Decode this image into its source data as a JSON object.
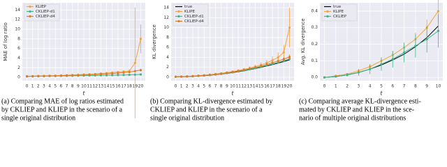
{
  "chart_data": [
    {
      "type": "line",
      "ylabel": "MAE of log ratio",
      "xlabel": "t",
      "x": [
        0,
        1,
        2,
        3,
        4,
        5,
        6,
        7,
        8,
        9,
        10,
        11,
        12,
        13,
        14,
        15,
        16,
        17,
        18,
        19,
        20
      ],
      "xlim": [
        -0.8,
        20.8
      ],
      "xticks": [
        0,
        1,
        2,
        3,
        4,
        5,
        6,
        7,
        8,
        9,
        10,
        11,
        12,
        13,
        14,
        15,
        16,
        17,
        18,
        19,
        20
      ],
      "ylim": [
        -0.7,
        15.5
      ],
      "yticks": [
        0,
        2,
        4,
        6,
        8,
        10,
        12,
        14
      ],
      "grid": true,
      "series": [
        {
          "name": "KLIEP",
          "color": "#f2a541",
          "values": [
            0.2,
            0.25,
            0.3,
            0.3,
            0.35,
            0.35,
            0.4,
            0.45,
            0.5,
            0.55,
            0.6,
            0.65,
            0.7,
            0.8,
            0.9,
            1.0,
            1.1,
            1.2,
            1.3,
            3.0,
            8.0
          ],
          "errors": [
            0.05,
            0.05,
            0.05,
            0.05,
            0.05,
            0.05,
            0.05,
            0.1,
            0.1,
            0.1,
            0.1,
            0.1,
            0.15,
            0.15,
            0.2,
            0.2,
            0.25,
            0.3,
            0.4,
            11.5,
            3.0
          ]
        },
        {
          "name": "CKLIEP-d1",
          "color": "#3fb68a",
          "values": [
            0.2,
            0.22,
            0.24,
            0.25,
            0.27,
            0.28,
            0.3,
            0.31,
            0.33,
            0.35,
            0.36,
            0.38,
            0.4,
            0.42,
            0.44,
            0.46,
            0.48,
            0.5,
            0.53,
            0.56,
            0.6
          ],
          "errors": [
            0.03,
            0.03,
            0.03,
            0.03,
            0.03,
            0.03,
            0.03,
            0.04,
            0.04,
            0.04,
            0.04,
            0.05,
            0.05,
            0.05,
            0.05,
            0.06,
            0.06,
            0.06,
            0.07,
            0.07,
            0.08
          ]
        },
        {
          "name": "CKLIEP-d4",
          "color": "#e07b28",
          "values": [
            0.2,
            0.23,
            0.26,
            0.28,
            0.3,
            0.32,
            0.35,
            0.38,
            0.42,
            0.45,
            0.5,
            0.55,
            0.6,
            0.66,
            0.72,
            0.8,
            0.9,
            1.0,
            1.1,
            1.3,
            1.5
          ],
          "errors": [
            0.03,
            0.03,
            0.03,
            0.04,
            0.04,
            0.04,
            0.05,
            0.05,
            0.05,
            0.06,
            0.06,
            0.07,
            0.08,
            0.08,
            0.09,
            0.1,
            0.12,
            0.14,
            0.16,
            0.2,
            0.3
          ]
        }
      ],
      "caption": [
        "(a) Comparing MAE of log ratios estimated",
        "by CKLIEP and KLIEP in the scenario of a",
        "single original distribution"
      ]
    },
    {
      "type": "line",
      "ylabel": "KL divergence",
      "xlabel": "t",
      "x": [
        0,
        1,
        2,
        3,
        4,
        5,
        6,
        7,
        8,
        9,
        10,
        11,
        12,
        13,
        14,
        15,
        16,
        17,
        18,
        19,
        20
      ],
      "xlim": [
        -0.8,
        20.8
      ],
      "xticks": [
        0,
        1,
        2,
        3,
        4,
        5,
        6,
        7,
        8,
        9,
        10,
        11,
        12,
        13,
        14,
        15,
        16,
        17,
        18,
        19,
        20
      ],
      "ylim": [
        -0.7,
        15
      ],
      "yticks": [
        0,
        2,
        4,
        6,
        8,
        10,
        12,
        14
      ],
      "grid": true,
      "series": [
        {
          "name": "true",
          "color": "#000000",
          "markers": false,
          "values": [
            0.1,
            0.11,
            0.13,
            0.18,
            0.24,
            0.31,
            0.41,
            0.52,
            0.64,
            0.79,
            0.95,
            1.13,
            1.32,
            1.54,
            1.77,
            2.01,
            2.28,
            2.56,
            2.85,
            3.17,
            3.5
          ]
        },
        {
          "name": "KLIPE",
          "color": "#f2a541",
          "values": [
            0.1,
            0.13,
            0.18,
            0.25,
            0.33,
            0.42,
            0.53,
            0.66,
            0.8,
            0.96,
            1.15,
            1.35,
            1.58,
            1.85,
            2.15,
            2.5,
            2.9,
            3.4,
            4.0,
            5.0,
            10.0
          ],
          "errors": [
            0.02,
            0.03,
            0.04,
            0.05,
            0.06,
            0.08,
            0.1,
            0.12,
            0.14,
            0.16,
            0.2,
            0.25,
            0.3,
            0.35,
            0.4,
            0.5,
            0.6,
            0.8,
            1.0,
            1.5,
            4.0
          ]
        },
        {
          "name": "CKLIEP-d1",
          "color": "#3fb68a",
          "values": [
            0.1,
            0.12,
            0.15,
            0.2,
            0.26,
            0.33,
            0.43,
            0.54,
            0.67,
            0.82,
            0.99,
            1.17,
            1.37,
            1.6,
            1.84,
            2.1,
            2.38,
            2.67,
            2.98,
            3.32,
            3.7
          ],
          "errors": [
            0.02,
            0.02,
            0.03,
            0.04,
            0.05,
            0.06,
            0.07,
            0.08,
            0.09,
            0.1,
            0.12,
            0.14,
            0.16,
            0.18,
            0.2,
            0.22,
            0.25,
            0.28,
            0.3,
            0.35,
            0.4
          ]
        },
        {
          "name": "CKLIEP-d4",
          "color": "#e07b28",
          "values": [
            0.1,
            0.12,
            0.16,
            0.21,
            0.28,
            0.36,
            0.46,
            0.58,
            0.72,
            0.88,
            1.06,
            1.26,
            1.48,
            1.72,
            1.98,
            2.27,
            2.58,
            2.91,
            3.27,
            3.65,
            4.1
          ],
          "errors": [
            0.02,
            0.03,
            0.03,
            0.04,
            0.05,
            0.06,
            0.08,
            0.09,
            0.1,
            0.12,
            0.14,
            0.16,
            0.18,
            0.2,
            0.23,
            0.26,
            0.3,
            0.33,
            0.37,
            0.42,
            0.5
          ]
        }
      ],
      "caption": [
        "(b) Comparing KL-divergence estimated by",
        "CKLIEP and KLIEP in the scenario of a",
        "single original distribution"
      ]
    },
    {
      "type": "line",
      "ylabel": "Avg. KL divergence",
      "xlabel": "t",
      "x": [
        0,
        1,
        2,
        3,
        4,
        5,
        6,
        7,
        8,
        9,
        10
      ],
      "xlim": [
        -0.4,
        10.4
      ],
      "xticks": [
        0,
        1,
        2,
        3,
        4,
        5,
        6,
        7,
        8,
        9,
        10
      ],
      "ylim": [
        -0.02,
        0.45
      ],
      "yticks": [
        {
          "value": 0,
          "label": "0.0"
        },
        0.1,
        0.2,
        0.3,
        0.4
      ],
      "grid": true,
      "series": [
        {
          "name": "true",
          "color": "#000000",
          "markers": false,
          "values": [
            0,
            0.005,
            0.015,
            0.03,
            0.05,
            0.075,
            0.105,
            0.14,
            0.185,
            0.24,
            0.31
          ]
        },
        {
          "name": "KLIPE",
          "color": "#f2a541",
          "values": [
            0,
            0.01,
            0.02,
            0.04,
            0.065,
            0.1,
            0.135,
            0.18,
            0.23,
            0.3,
            0.4
          ],
          "errors": [
            0.002,
            0.004,
            0.006,
            0.01,
            0.015,
            0.02,
            0.025,
            0.03,
            0.04,
            0.05,
            0.07
          ]
        },
        {
          "name": "CKLIEP",
          "color": "#3fb68a",
          "values": [
            0,
            0.005,
            0.015,
            0.03,
            0.05,
            0.08,
            0.11,
            0.15,
            0.19,
            0.23,
            0.28
          ],
          "errors": [
            0.002,
            0.005,
            0.01,
            0.02,
            0.03,
            0.04,
            0.05,
            0.06,
            0.07,
            0.08,
            0.1
          ]
        }
      ],
      "caption": [
        "(c) Comparing average KL-divergence esti-",
        "mated by CKLIEP and KLIEP in the sce-",
        "nario of multiple original distributions"
      ]
    }
  ]
}
